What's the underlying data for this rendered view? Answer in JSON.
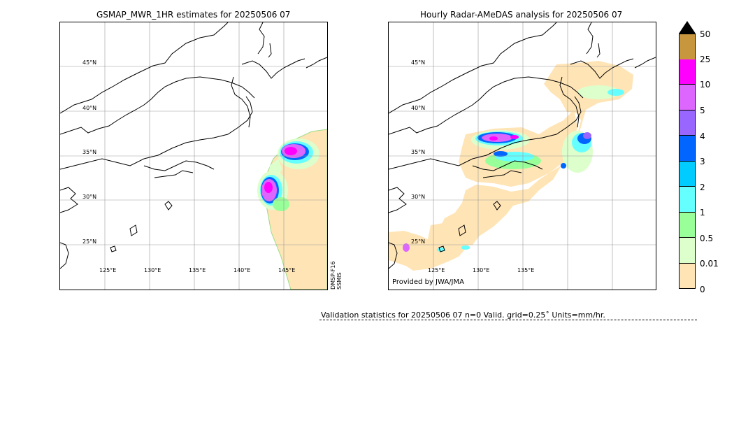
{
  "left_panel": {
    "title": "GSMAP_MWR_1HR estimates for 20250506 07",
    "lat_labels": [
      "45°N",
      "40°N",
      "35°N",
      "30°N",
      "25°N"
    ],
    "lon_labels": [
      "125°E",
      "130°E",
      "135°E",
      "140°E",
      "145°E"
    ],
    "satellite_label_1": "DMSP-F16",
    "satellite_label_2": "SSMIS"
  },
  "right_panel": {
    "title": "Hourly Radar-AMeDAS analysis for 20250506 07",
    "lat_labels": [
      "45°N",
      "40°N",
      "35°N",
      "30°N",
      "25°N"
    ],
    "lon_labels": [
      "125°E",
      "130°E",
      "135°E"
    ],
    "provided_by": "Provided by JWA/JMA"
  },
  "colorbar": {
    "labels": [
      "50",
      "25",
      "10",
      "5",
      "4",
      "3",
      "2",
      "1",
      "0.5",
      "0.01",
      "0"
    ],
    "colors": [
      "#c8963c",
      "#ff00ff",
      "#dd66ff",
      "#9966ff",
      "#0066ff",
      "#00ccff",
      "#66ffff",
      "#99ff99",
      "#ddffcc",
      "#ffe4b5"
    ],
    "over_color": "#000000"
  },
  "validation": {
    "text": "Validation statistics for 20250506 07  n=0 Valid. grid=0.25˚ Units=mm/hr."
  }
}
